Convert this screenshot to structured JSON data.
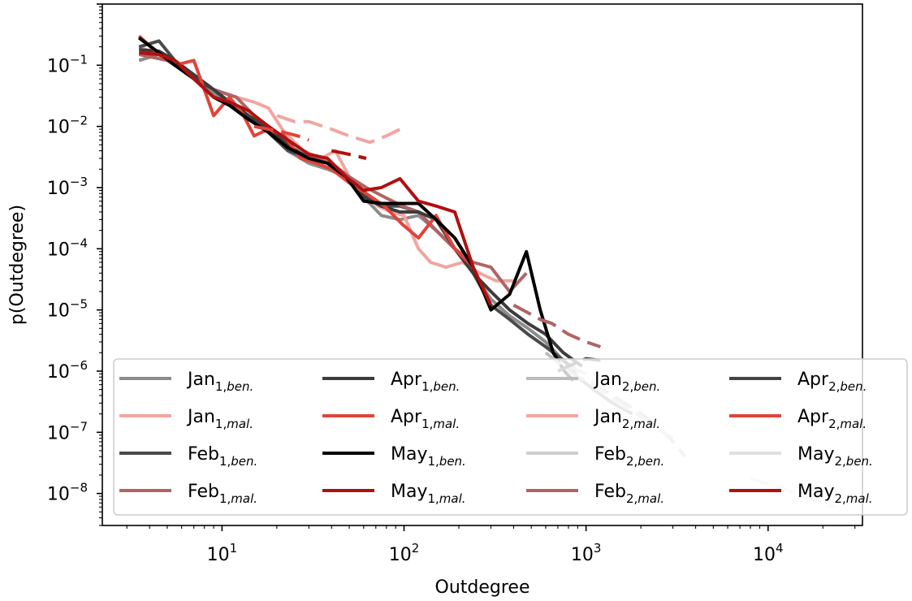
{
  "chart_data": {
    "type": "line",
    "title": "",
    "xlabel": "Outdegree",
    "ylabel": "p(Outdegree)",
    "x_scale": "log",
    "y_scale": "log",
    "xlim": [
      2.2,
      33000
    ],
    "ylim": [
      3e-09,
      1.0
    ],
    "x_ticks": [
      {
        "value": 10,
        "base": "10",
        "exp": "1"
      },
      {
        "value": 100,
        "base": "10",
        "exp": "2"
      },
      {
        "value": 1000,
        "base": "10",
        "exp": "3"
      },
      {
        "value": 10000,
        "base": "10",
        "exp": "4"
      }
    ],
    "y_ticks": [
      {
        "value": 0.1,
        "base": "10",
        "exp": "−1"
      },
      {
        "value": 0.01,
        "base": "10",
        "exp": "−2"
      },
      {
        "value": 0.001,
        "base": "10",
        "exp": "−3"
      },
      {
        "value": 0.0001,
        "base": "10",
        "exp": "−4"
      },
      {
        "value": 1e-05,
        "base": "10",
        "exp": "−5"
      },
      {
        "value": 1e-06,
        "base": "10",
        "exp": "−6"
      },
      {
        "value": 1e-07,
        "base": "10",
        "exp": "−7"
      },
      {
        "value": 1e-08,
        "base": "10",
        "exp": "−8"
      }
    ],
    "grid": false,
    "legend_position": "lower-center",
    "legend_columns": 4,
    "series": [
      {
        "name": "Jan",
        "run": "1",
        "kind": "ben.",
        "color": "#8c8c8c",
        "dash": false,
        "x": [
          3.5,
          4.5,
          5.5,
          7,
          9,
          11,
          14,
          18,
          23,
          30,
          38,
          48,
          60,
          75,
          95,
          120,
          150,
          190,
          240,
          300,
          380,
          480,
          600,
          750,
          900,
          1100,
          1400,
          1800
        ],
        "y": [
          0.12,
          0.15,
          0.1,
          0.06,
          0.035,
          0.022,
          0.014,
          0.008,
          0.004,
          0.0025,
          0.002,
          0.0015,
          0.0007,
          0.00035,
          0.0003,
          0.00035,
          0.0002,
          0.0001,
          4e-05,
          1.5e-05,
          8e-06,
          5e-06,
          3e-06,
          1.5e-06,
          8e-07,
          5e-07,
          3e-07,
          2e-07
        ]
      },
      {
        "name": "Jan",
        "run": "1",
        "kind": "mal.",
        "color": "#f2a5a0",
        "dash": false,
        "x": [
          3.5,
          5,
          7,
          9,
          12,
          15,
          18,
          22,
          28,
          35,
          42,
          50,
          60,
          72,
          85,
          100,
          120,
          140,
          170,
          210,
          260,
          320,
          400
        ],
        "y": [
          0.2,
          0.13,
          0.06,
          0.04,
          0.03,
          0.025,
          0.02,
          0.008,
          0.004,
          0.003,
          0.004,
          0.0015,
          0.0008,
          0.0005,
          0.0004,
          0.00035,
          0.0001,
          6e-05,
          5e-05,
          6e-05,
          4e-05,
          3e-05,
          3e-05
        ]
      },
      {
        "name": "Feb",
        "run": "1",
        "kind": "ben.",
        "color": "#4a4a4a",
        "dash": false,
        "x": [
          3.5,
          4.5,
          5.5,
          7,
          9,
          11,
          14,
          18,
          23,
          30,
          38,
          48,
          60,
          75,
          95,
          120,
          150,
          190,
          240,
          300,
          380,
          480,
          600,
          750,
          900
        ],
        "y": [
          0.2,
          0.25,
          0.12,
          0.06,
          0.04,
          0.025,
          0.015,
          0.008,
          0.004,
          0.003,
          0.0025,
          0.0015,
          0.0008,
          0.0005,
          0.0005,
          0.0004,
          0.0002,
          0.0001,
          4e-05,
          1.2e-05,
          7e-06,
          4e-06,
          2.5e-06,
          1.5e-06,
          1e-06
        ]
      },
      {
        "name": "Feb",
        "run": "1",
        "kind": "mal.",
        "color": "#b06464",
        "dash": false,
        "x": [
          3.5,
          5,
          7,
          9,
          12,
          15,
          20,
          25,
          32,
          40,
          50,
          62,
          78,
          98,
          120,
          150,
          190,
          240,
          300,
          380,
          470
        ],
        "y": [
          0.15,
          0.12,
          0.07,
          0.04,
          0.03,
          0.015,
          0.008,
          0.004,
          0.003,
          0.0025,
          0.0015,
          0.001,
          0.0007,
          0.0005,
          0.0004,
          0.0002,
          0.0001,
          6e-05,
          5e-05,
          2e-05,
          4e-05
        ]
      },
      {
        "name": "Apr",
        "run": "1",
        "kind": "ben.",
        "color": "#3c3c3c",
        "dash": false,
        "x": [
          3.5,
          4.5,
          5.5,
          7,
          9,
          11,
          14,
          18,
          23,
          30,
          38,
          48,
          60,
          75,
          95,
          120,
          150,
          190,
          240,
          300,
          380,
          480,
          600,
          750,
          950
        ],
        "y": [
          0.18,
          0.17,
          0.12,
          0.07,
          0.04,
          0.025,
          0.015,
          0.009,
          0.005,
          0.003,
          0.0025,
          0.0015,
          0.0007,
          0.0005,
          0.0004,
          0.0004,
          0.0003,
          0.0001,
          4e-05,
          2e-05,
          1e-05,
          6e-06,
          4e-06,
          2e-06,
          1.2e-06
        ]
      },
      {
        "name": "Apr",
        "run": "1",
        "kind": "mal.",
        "color": "#e0443a",
        "dash": false,
        "x": [
          3.5,
          4.5,
          5.5,
          7,
          9,
          11,
          13,
          15,
          18,
          22,
          27,
          33,
          40,
          50,
          62,
          78,
          98,
          120,
          150,
          190,
          240
        ],
        "y": [
          0.3,
          0.15,
          0.1,
          0.12,
          0.015,
          0.03,
          0.016,
          0.007,
          0.009,
          0.007,
          0.003,
          0.0025,
          0.002,
          0.0012,
          0.0008,
          0.0005,
          0.00025,
          0.00015,
          0.00035,
          0.0001,
          5e-05
        ]
      },
      {
        "name": "May",
        "run": "1",
        "kind": "ben.",
        "color": "#000000",
        "dash": false,
        "x": [
          3.5,
          4.5,
          5.5,
          7,
          9,
          11,
          14,
          18,
          23,
          30,
          38,
          48,
          60,
          75,
          95,
          120,
          150,
          190,
          240,
          300,
          380,
          470,
          560,
          660,
          760,
          850
        ],
        "y": [
          0.28,
          0.16,
          0.1,
          0.06,
          0.03,
          0.022,
          0.013,
          0.008,
          0.0045,
          0.003,
          0.0025,
          0.0015,
          0.0006,
          0.00055,
          0.00055,
          0.00055,
          0.0003,
          0.00015,
          5e-05,
          1e-05,
          1.8e-05,
          9e-05,
          1e-05,
          2e-06,
          1e-06,
          7e-07
        ]
      },
      {
        "name": "May",
        "run": "1",
        "kind": "mal.",
        "color": "#b01010",
        "dash": false,
        "x": [
          3.5,
          4.5,
          5.5,
          7,
          9,
          11,
          14,
          18,
          23,
          30,
          38,
          48,
          60,
          75,
          95,
          120,
          150,
          190,
          240,
          300
        ],
        "y": [
          0.16,
          0.15,
          0.12,
          0.06,
          0.03,
          0.025,
          0.018,
          0.01,
          0.006,
          0.0035,
          0.003,
          0.0015,
          0.0009,
          0.001,
          0.0014,
          0.0006,
          0.0005,
          0.0004,
          5e-05,
          1.2e-05
        ]
      },
      {
        "name": "Jan",
        "run": "2",
        "kind": "ben.",
        "color": "#bdbdbd",
        "dash": true,
        "x": [
          600,
          750,
          900,
          1100,
          1400,
          1800,
          2300,
          2900,
          3500
        ],
        "y": [
          2e-06,
          1.2e-06,
          8e-07,
          6e-07,
          4e-07,
          2.5e-07,
          1.5e-07,
          8e-08,
          4e-08
        ]
      },
      {
        "name": "Jan",
        "run": "2",
        "kind": "mal.",
        "color": "#f2a5a0",
        "dash": true,
        "x": [
          20,
          25,
          30,
          40,
          50,
          65,
          80,
          95
        ],
        "y": [
          0.015,
          0.012,
          0.012,
          0.009,
          0.007,
          0.0055,
          0.007,
          0.009
        ]
      },
      {
        "name": "Feb",
        "run": "2",
        "kind": "ben.",
        "color": "#cfcfcf",
        "dash": true,
        "x": [
          800,
          1000,
          1200,
          1500,
          1900,
          2400,
          3000
        ],
        "y": [
          1.2e-06,
          9e-07,
          5e-07,
          3e-07,
          2e-07,
          1.2e-07,
          8e-08
        ]
      },
      {
        "name": "Feb",
        "run": "2",
        "kind": "mal.",
        "color": "#b06464",
        "dash": true,
        "x": [
          400,
          480,
          560,
          650,
          800,
          1000,
          1200
        ],
        "y": [
          1.2e-05,
          9e-06,
          7e-06,
          6e-06,
          4e-06,
          3e-06,
          2.5e-06
        ]
      },
      {
        "name": "Apr",
        "run": "2",
        "kind": "ben.",
        "color": "#444444",
        "dash": true,
        "x": [
          700,
          800,
          900,
          1000,
          1200
        ],
        "y": [
          1e-06,
          1.2e-06,
          1.4e-06,
          1.6e-06,
          1.5e-06
        ]
      },
      {
        "name": "Apr",
        "run": "2",
        "kind": "mal.",
        "color": "#e0443a",
        "dash": true,
        "x": [
          15,
          18,
          22,
          26,
          30
        ],
        "y": [
          0.01,
          0.009,
          0.008,
          0.007,
          0.006
        ]
      },
      {
        "name": "May",
        "run": "2",
        "kind": "ben.",
        "color": "#e0e0e0",
        "dash": true,
        "x": [
          8000,
          10000,
          12000,
          14500,
          17500,
          20000,
          23000
        ],
        "y": [
          1.8e-08,
          1.4e-08,
          1.2e-08,
          1e-08,
          8e-09,
          7e-09,
          6e-09
        ]
      },
      {
        "name": "May",
        "run": "2",
        "kind": "mal.",
        "color": "#b01010",
        "dash": true,
        "x": [
          40,
          50,
          62
        ],
        "y": [
          0.004,
          0.0035,
          0.003
        ]
      }
    ]
  }
}
